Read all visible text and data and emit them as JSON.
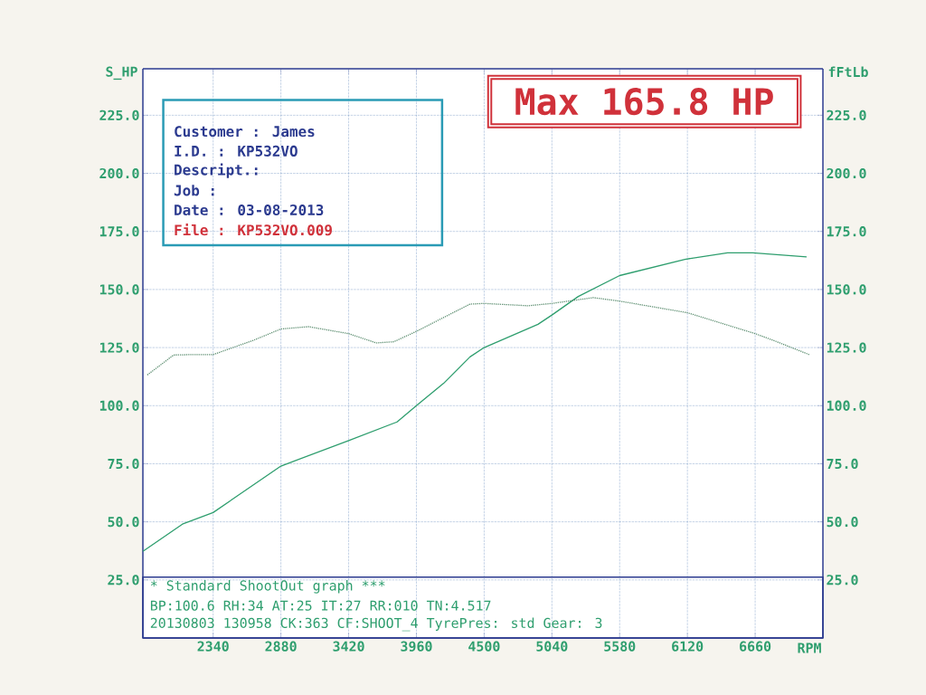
{
  "chart_data": {
    "type": "line",
    "xlabel": "RPM",
    "ylabel": "S_HP",
    "y2label": "fFtLb",
    "annotations": [
      "Max 165.8 HP",
      "Customer : James",
      "I.D.     : KP532VO",
      "Descript.:",
      "Job      :",
      "Date     : 03-08-2013",
      "File     : KP532VO.009",
      "* Standard ShootOut graph ***",
      "BP:100.6 RH:34 AT:25 IT:27  RR:010 TN:4.517",
      "20130803 130958 CK:363 CF:SHOOT_4  TyrePres: std      Gear: 3"
    ],
    "xlim": [
      1780,
      7200
    ],
    "xticks": [
      2340,
      2880,
      3420,
      3960,
      4500,
      5040,
      5580,
      6120,
      6660
    ],
    "ylim": [
      0,
      245
    ],
    "yticks": [
      {
        "value": 25,
        "label": "25.0"
      },
      {
        "value": 50,
        "label": "50.0"
      },
      {
        "value": 75,
        "label": "75.0"
      },
      {
        "value": 100,
        "label": "100.0"
      },
      {
        "value": 125,
        "label": "125.0"
      },
      {
        "value": 150,
        "label": "150.0"
      },
      {
        "value": 175,
        "label": "175.0"
      },
      {
        "value": 200,
        "label": "200.0"
      },
      {
        "value": 225,
        "label": "225.0"
      }
    ],
    "y2lim": [
      0,
      245
    ],
    "y2ticks": [
      {
        "value": 25,
        "label": "25.0"
      },
      {
        "value": 50,
        "label": "50.0"
      },
      {
        "value": 75,
        "label": "75.0"
      },
      {
        "value": 100,
        "label": "100.0"
      },
      {
        "value": 125,
        "label": "125.0"
      },
      {
        "value": 150,
        "label": "150.0"
      },
      {
        "value": 175,
        "label": "175.0"
      },
      {
        "value": 200,
        "label": "200.0"
      },
      {
        "value": 225,
        "label": "225.0"
      }
    ],
    "grid": true,
    "series": [
      {
        "color": "#2e9e6e",
        "line_style": "solid",
        "x": [
          1780,
          2095,
          2340,
          2880,
          3420,
          3806,
          3960,
          4177,
          4387,
          4500,
          4929,
          5040,
          5250,
          5580,
          6100,
          6440,
          6640,
          7070
        ],
        "values": [
          37.3,
          49,
          54,
          74,
          85,
          93,
          100,
          109.6,
          121,
          125,
          135,
          139,
          147,
          156,
          163,
          165.8,
          165.8,
          164
        ]
      },
      {
        "color": "#5e8f72",
        "line_style": "dotted",
        "axis": "y2",
        "x": [
          1815,
          2025,
          2190,
          2340,
          2655,
          2880,
          3100,
          3420,
          3640,
          3780,
          3960,
          4387,
          4500,
          4850,
          5040,
          5370,
          5580,
          6120,
          6360,
          6660,
          6810,
          7090
        ],
        "values": [
          113.2,
          121.8,
          122,
          122,
          128,
          133,
          134,
          131,
          127,
          127.5,
          132,
          143.7,
          144,
          143,
          144,
          146.5,
          145,
          140,
          136,
          131,
          128,
          122
        ]
      }
    ]
  }
}
